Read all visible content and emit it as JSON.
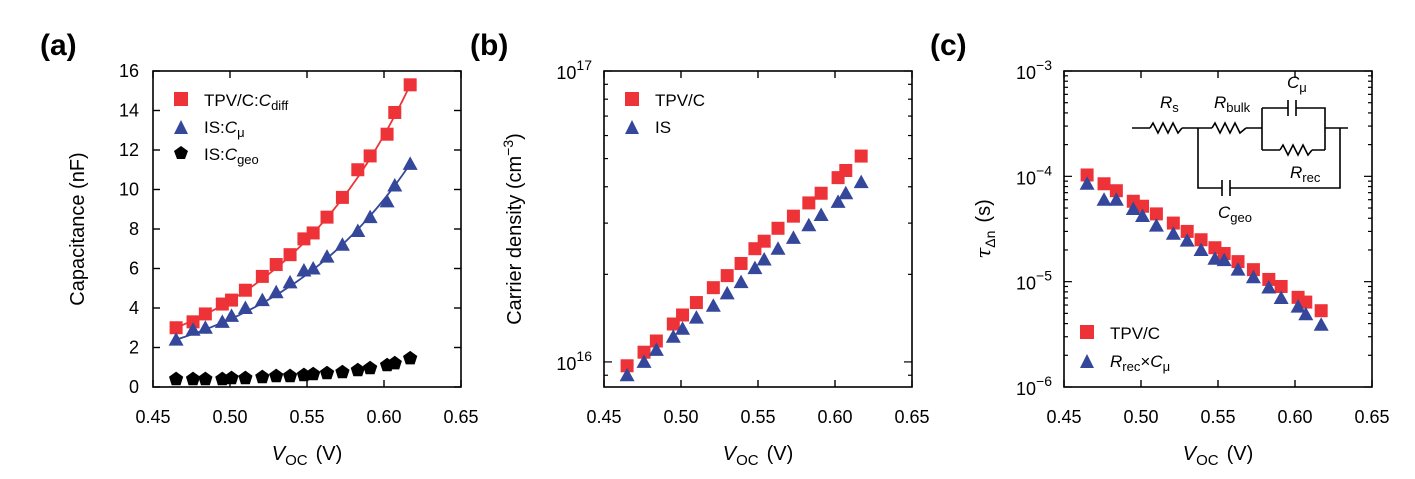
{
  "colors": {
    "red": "#ee3338",
    "blue": "#34479b",
    "black": "#000000"
  },
  "chart_data": [
    {
      "panel": "(a)",
      "type": "scatter",
      "xlabel_main": "V",
      "xlabel_sub": "OC",
      "xlabel_unit": "(V)",
      "ylabel": "Capacitance (nF)",
      "xlim": [
        0.45,
        0.65
      ],
      "ylim": [
        0,
        16
      ],
      "xticks": [
        "0.45",
        "0.50",
        "0.55",
        "0.60",
        "0.65"
      ],
      "yticks": [
        "0",
        "2",
        "4",
        "6",
        "8",
        "10",
        "12",
        "14",
        "16"
      ],
      "legend": [
        {
          "main": "TPV/C:",
          "it": "C",
          "sub": "diff"
        },
        {
          "main": "IS:",
          "it": "C",
          "sub": "μ"
        },
        {
          "main": "IS:",
          "it": "C",
          "sub": "geo"
        }
      ],
      "series": [
        {
          "name": "TPV/C:C_diff",
          "marker": "square",
          "color": "red",
          "fit": true,
          "x": [
            0.465,
            0.476,
            0.484,
            0.495,
            0.501,
            0.51,
            0.521,
            0.53,
            0.539,
            0.548,
            0.554,
            0.563,
            0.573,
            0.583,
            0.591,
            0.602,
            0.607,
            0.617
          ],
          "y": [
            3.0,
            3.3,
            3.7,
            4.2,
            4.4,
            4.9,
            5.6,
            6.2,
            6.7,
            7.5,
            7.8,
            8.6,
            9.6,
            11.0,
            11.7,
            12.8,
            13.9,
            15.3
          ]
        },
        {
          "name": "IS:C_mu",
          "marker": "triangle",
          "color": "blue",
          "fit": true,
          "x": [
            0.465,
            0.476,
            0.484,
            0.495,
            0.501,
            0.51,
            0.521,
            0.53,
            0.539,
            0.548,
            0.554,
            0.563,
            0.573,
            0.583,
            0.591,
            0.602,
            0.607,
            0.617
          ],
          "y": [
            2.4,
            2.9,
            3.0,
            3.3,
            3.6,
            4.0,
            4.4,
            4.8,
            5.3,
            5.9,
            6.0,
            6.6,
            7.2,
            7.9,
            8.6,
            9.4,
            10.2,
            11.3
          ]
        },
        {
          "name": "IS:C_geo",
          "marker": "pentagon",
          "color": "black",
          "fit": false,
          "x": [
            0.465,
            0.476,
            0.484,
            0.495,
            0.501,
            0.51,
            0.521,
            0.53,
            0.539,
            0.548,
            0.554,
            0.563,
            0.573,
            0.583,
            0.591,
            0.602,
            0.607,
            0.617
          ],
          "y": [
            0.4,
            0.4,
            0.4,
            0.4,
            0.45,
            0.45,
            0.5,
            0.55,
            0.55,
            0.6,
            0.65,
            0.7,
            0.75,
            0.85,
            0.95,
            1.1,
            1.2,
            1.45
          ]
        }
      ]
    },
    {
      "panel": "(b)",
      "type": "scatter",
      "yscale": "log",
      "xlabel_main": "V",
      "xlabel_sub": "OC",
      "xlabel_unit": "(V)",
      "ylabel_main": "Carrier density (cm",
      "ylabel_sup": "−3",
      "ylabel_end": ")",
      "xlim": [
        0.45,
        0.65
      ],
      "ylim": [
        8200000000000000.0,
        1e+17
      ],
      "xticks": [
        "0.45",
        "0.50",
        "0.55",
        "0.60",
        "0.65"
      ],
      "yticks": [
        {
          "base": "10",
          "exp": "16",
          "value": 1e+16
        },
        {
          "base": "10",
          "exp": "17",
          "value": 1e+17
        }
      ],
      "legend": [
        {
          "main": "TPV/C"
        },
        {
          "main": "IS"
        }
      ],
      "series": [
        {
          "name": "TPV/C",
          "marker": "square",
          "color": "red",
          "x": [
            0.465,
            0.476,
            0.484,
            0.495,
            0.501,
            0.51,
            0.521,
            0.53,
            0.539,
            0.548,
            0.554,
            0.563,
            0.573,
            0.583,
            0.591,
            0.602,
            0.607,
            0.617
          ],
          "y": [
            9700000000000000.0,
            1.08e+16,
            1.18e+16,
            1.35e+16,
            1.45e+16,
            1.6e+16,
            1.8e+16,
            1.98e+16,
            2.18e+16,
            2.45e+16,
            2.6e+16,
            2.88e+16,
            3.17e+16,
            3.52e+16,
            3.8e+16,
            4.3e+16,
            4.55e+16,
            5.1e+16
          ]
        },
        {
          "name": "IS",
          "marker": "triangle",
          "color": "blue",
          "x": [
            0.465,
            0.476,
            0.484,
            0.495,
            0.501,
            0.51,
            0.521,
            0.53,
            0.539,
            0.548,
            0.554,
            0.563,
            0.573,
            0.583,
            0.591,
            0.602,
            0.607,
            0.617
          ],
          "y": [
            9000000000000000.0,
            1e+16,
            1.1e+16,
            1.22e+16,
            1.3e+16,
            1.42e+16,
            1.56e+16,
            1.72e+16,
            1.88e+16,
            2.1e+16,
            2.25e+16,
            2.45e+16,
            2.67e+16,
            2.95e+16,
            3.2e+16,
            3.55e+16,
            3.8e+16,
            4.15e+16
          ]
        }
      ]
    },
    {
      "panel": "(c)",
      "type": "scatter",
      "yscale": "log",
      "xlabel_main": "V",
      "xlabel_sub": "OC",
      "xlabel_unit": "(V)",
      "ylabel_main": "τ",
      "ylabel_sub": "Δn",
      "ylabel_unit": "(s)",
      "xlim": [
        0.45,
        0.65
      ],
      "ylim": [
        1e-06,
        0.001
      ],
      "xticks": [
        "0.45",
        "0.50",
        "0.55",
        "0.60",
        "0.65"
      ],
      "yticks": [
        {
          "base": "10",
          "exp": "−6",
          "value": 1e-06
        },
        {
          "base": "10",
          "exp": "−5",
          "value": 1e-05
        },
        {
          "base": "10",
          "exp": "−4",
          "value": 0.0001
        },
        {
          "base": "10",
          "exp": "−3",
          "value": 0.001
        }
      ],
      "legend": [
        {
          "main": "TPV/C"
        },
        {
          "it": "R",
          "sub": "rec",
          "main": "×",
          "it2": "C",
          "sub2": "μ"
        }
      ],
      "circuit": {
        "rs": {
          "it": "R",
          "sub": "s"
        },
        "rbulk": {
          "it": "R",
          "sub": "bulk"
        },
        "cmu": {
          "it": "C",
          "sub": "μ"
        },
        "rrec": {
          "it": "R",
          "sub": "rec"
        },
        "cgeo": {
          "it": "C",
          "sub": "geo"
        }
      },
      "series": [
        {
          "name": "TPV/C",
          "marker": "square",
          "color": "red",
          "x": [
            0.465,
            0.476,
            0.484,
            0.495,
            0.501,
            0.51,
            0.521,
            0.53,
            0.539,
            0.548,
            0.554,
            0.563,
            0.573,
            0.583,
            0.591,
            0.602,
            0.607,
            0.617
          ],
          "y": [
            0.000103,
            8.5e-05,
            7.3e-05,
            5.8e-05,
            5.2e-05,
            4.4e-05,
            3.6e-05,
            3e-05,
            2.5e-05,
            2.1e-05,
            1.85e-05,
            1.55e-05,
            1.3e-05,
            1.05e-05,
            9e-06,
            7.1e-06,
            6.4e-06,
            5.3e-06
          ]
        },
        {
          "name": "Rrec x Cmu",
          "marker": "triangle",
          "color": "blue",
          "x": [
            0.465,
            0.476,
            0.484,
            0.495,
            0.501,
            0.51,
            0.521,
            0.53,
            0.539,
            0.548,
            0.554,
            0.563,
            0.573,
            0.583,
            0.591,
            0.602,
            0.607,
            0.617
          ],
          "y": [
            8.5e-05,
            6e-05,
            6e-05,
            4.9e-05,
            4.2e-05,
            3.4e-05,
            2.85e-05,
            2.45e-05,
            2e-05,
            1.65e-05,
            1.6e-05,
            1.3e-05,
            1.1e-05,
            8.8e-06,
            7e-06,
            5.8e-06,
            4.9e-06,
            3.9e-06
          ]
        }
      ]
    }
  ]
}
